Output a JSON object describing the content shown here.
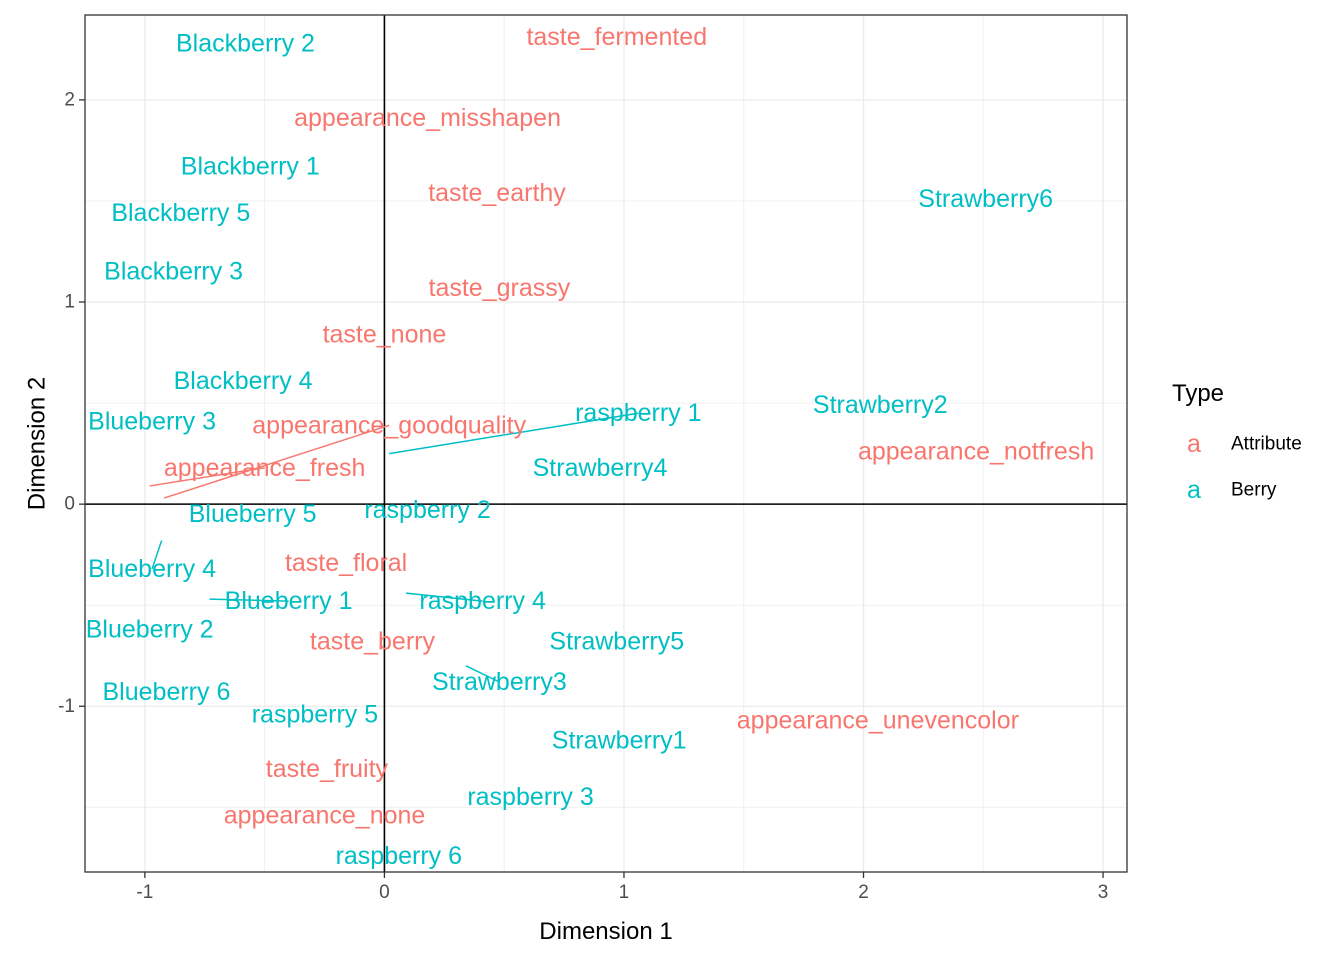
{
  "chart_data": {
    "type": "scatter",
    "xlabel": "Dimension 1",
    "ylabel": "Dimension 2",
    "xlim": [
      -1.25,
      3.1
    ],
    "ylim": [
      -1.82,
      2.42
    ],
    "x_ticks": [
      -1,
      0,
      1,
      2,
      3
    ],
    "y_ticks": [
      -1,
      0,
      1,
      2
    ],
    "x_tick_labels": [
      "-1",
      "0",
      "1",
      "2",
      "3"
    ],
    "y_tick_labels": [
      "-1",
      "0",
      "1",
      "2"
    ],
    "grid": true,
    "reference_lines": {
      "x": 0,
      "y": 0
    },
    "legend": {
      "title": "Type",
      "position": "right",
      "key_glyph": "a",
      "entries": [
        {
          "label": "Attribute",
          "color": "#F8766D"
        },
        {
          "label": "Berry",
          "color": "#00BFC4"
        }
      ]
    },
    "points": [
      {
        "label": "Blackberry 2",
        "type": "Berry",
        "x": -0.58,
        "y": 2.28
      },
      {
        "label": "taste_fermented",
        "type": "Attribute",
        "x": 0.97,
        "y": 2.31
      },
      {
        "label": "appearance_misshapen",
        "type": "Attribute",
        "x": 0.18,
        "y": 1.91
      },
      {
        "label": "Blackberry 1",
        "type": "Berry",
        "x": -0.56,
        "y": 1.67
      },
      {
        "label": "taste_earthy",
        "type": "Attribute",
        "x": 0.47,
        "y": 1.54
      },
      {
        "label": "Strawberry6",
        "type": "Berry",
        "x": 2.51,
        "y": 1.51
      },
      {
        "label": "Blackberry 5",
        "type": "Berry",
        "x": -0.85,
        "y": 1.44
      },
      {
        "label": "Blackberry 3",
        "type": "Berry",
        "x": -0.88,
        "y": 1.15
      },
      {
        "label": "taste_grassy",
        "type": "Attribute",
        "x": 0.48,
        "y": 1.07
      },
      {
        "label": "taste_none",
        "type": "Attribute",
        "x": 0.0,
        "y": 0.84
      },
      {
        "label": "Blackberry 4",
        "type": "Berry",
        "x": -0.59,
        "y": 0.61
      },
      {
        "label": "raspberry 1",
        "type": "Berry",
        "x": 1.06,
        "y": 0.45,
        "from": [
          0.02,
          0.25
        ]
      },
      {
        "label": "Strawberry2",
        "type": "Berry",
        "x": 2.07,
        "y": 0.49
      },
      {
        "label": "Blueberry 3",
        "type": "Berry",
        "x": -0.97,
        "y": 0.41
      },
      {
        "label": "appearance_goodquality",
        "type": "Attribute",
        "x": 0.02,
        "y": 0.39,
        "from": [
          -0.92,
          0.03
        ]
      },
      {
        "label": "appearance_notfresh",
        "type": "Attribute",
        "x": 2.47,
        "y": 0.26
      },
      {
        "label": "appearance_fresh",
        "type": "Attribute",
        "x": -0.5,
        "y": 0.18,
        "from": [
          -0.98,
          0.09
        ]
      },
      {
        "label": "Strawberry4",
        "type": "Berry",
        "x": 0.9,
        "y": 0.18
      },
      {
        "label": "Blueberry 5",
        "type": "Berry",
        "x": -0.55,
        "y": -0.05
      },
      {
        "label": "raspberry 2",
        "type": "Berry",
        "x": 0.18,
        "y": -0.03
      },
      {
        "label": "taste_floral",
        "type": "Attribute",
        "x": -0.16,
        "y": -0.29
      },
      {
        "label": "Blueberry 4",
        "type": "Berry",
        "x": -0.97,
        "y": -0.32,
        "from": [
          -0.93,
          -0.18
        ]
      },
      {
        "label": "Blueberry 1",
        "type": "Berry",
        "x": -0.4,
        "y": -0.48,
        "from": [
          -0.73,
          -0.47
        ]
      },
      {
        "label": "raspberry 4",
        "type": "Berry",
        "x": 0.41,
        "y": -0.48,
        "from": [
          0.09,
          -0.44
        ]
      },
      {
        "label": "Blueberry 2",
        "type": "Berry",
        "x": -0.98,
        "y": -0.62
      },
      {
        "label": "taste_berry",
        "type": "Attribute",
        "x": -0.05,
        "y": -0.68
      },
      {
        "label": "Strawberry5",
        "type": "Berry",
        "x": 0.97,
        "y": -0.68
      },
      {
        "label": "Strawberry3",
        "type": "Berry",
        "x": 0.48,
        "y": -0.88,
        "from": [
          0.34,
          -0.8
        ]
      },
      {
        "label": "Blueberry 6",
        "type": "Berry",
        "x": -0.91,
        "y": -0.93
      },
      {
        "label": "raspberry 5",
        "type": "Berry",
        "x": -0.29,
        "y": -1.04
      },
      {
        "label": "appearance_unevencolor",
        "type": "Attribute",
        "x": 2.06,
        "y": -1.07
      },
      {
        "label": "Strawberry1",
        "type": "Berry",
        "x": 0.98,
        "y": -1.17
      },
      {
        "label": "taste_fruity",
        "type": "Attribute",
        "x": -0.24,
        "y": -1.31
      },
      {
        "label": "raspberry 3",
        "type": "Berry",
        "x": 0.61,
        "y": -1.45
      },
      {
        "label": "appearance_none",
        "type": "Attribute",
        "x": -0.25,
        "y": -1.54
      },
      {
        "label": "raspberry 6",
        "type": "Berry",
        "x": 0.06,
        "y": -1.74
      }
    ]
  }
}
